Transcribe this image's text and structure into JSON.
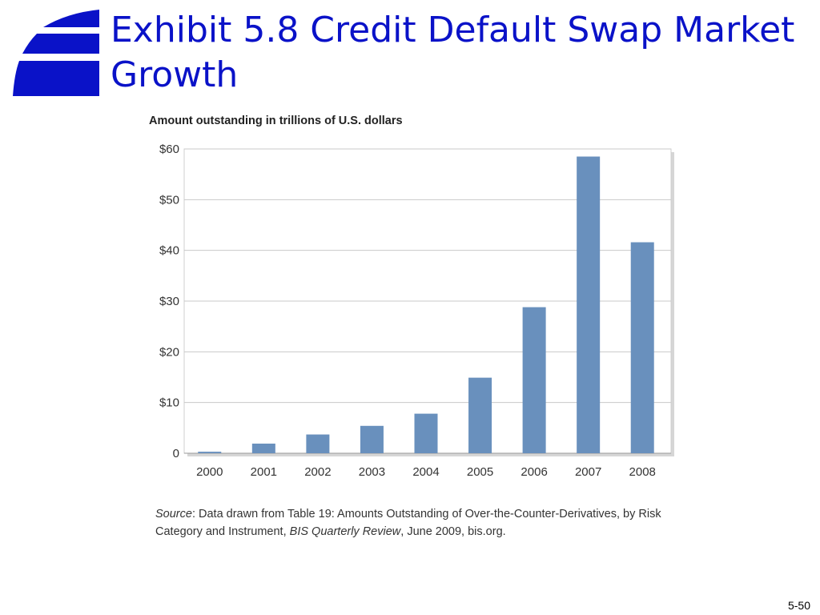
{
  "slide": {
    "title": "Exhibit 5.8 Credit Default Swap Market Growth",
    "page_number": "5-50"
  },
  "colors": {
    "title": "#0a12c8",
    "logo": "#0a12c8",
    "bar": "#6990bd",
    "plot_background": "#ffffff",
    "gridline": "#c9c9c9"
  },
  "chart_data": {
    "type": "bar",
    "title": "Amount outstanding in trillions of U.S. dollars",
    "xlabel": "",
    "ylabel": "",
    "categories": [
      "2000",
      "2001",
      "2002",
      "2003",
      "2004",
      "2005",
      "2006",
      "2007",
      "2008"
    ],
    "values": [
      0.3,
      1.9,
      3.7,
      5.4,
      7.8,
      14.9,
      28.8,
      58.5,
      41.6
    ],
    "ylim": [
      0,
      60
    ],
    "yticks": [
      0,
      10,
      20,
      30,
      40,
      50,
      60
    ],
    "ytick_labels": [
      "0",
      "$10",
      "$20",
      "$30",
      "$40",
      "$50",
      "$60"
    ],
    "grid": true,
    "legend": "none"
  },
  "source": {
    "label": "Source",
    "text_1": ": Data drawn from Table 19: Amounts Outstanding of Over-the-Counter-Derivatives, by Risk Category and Instrument, ",
    "publication": "BIS Quarterly Review",
    "text_2": ", June 2009, bis.org."
  }
}
